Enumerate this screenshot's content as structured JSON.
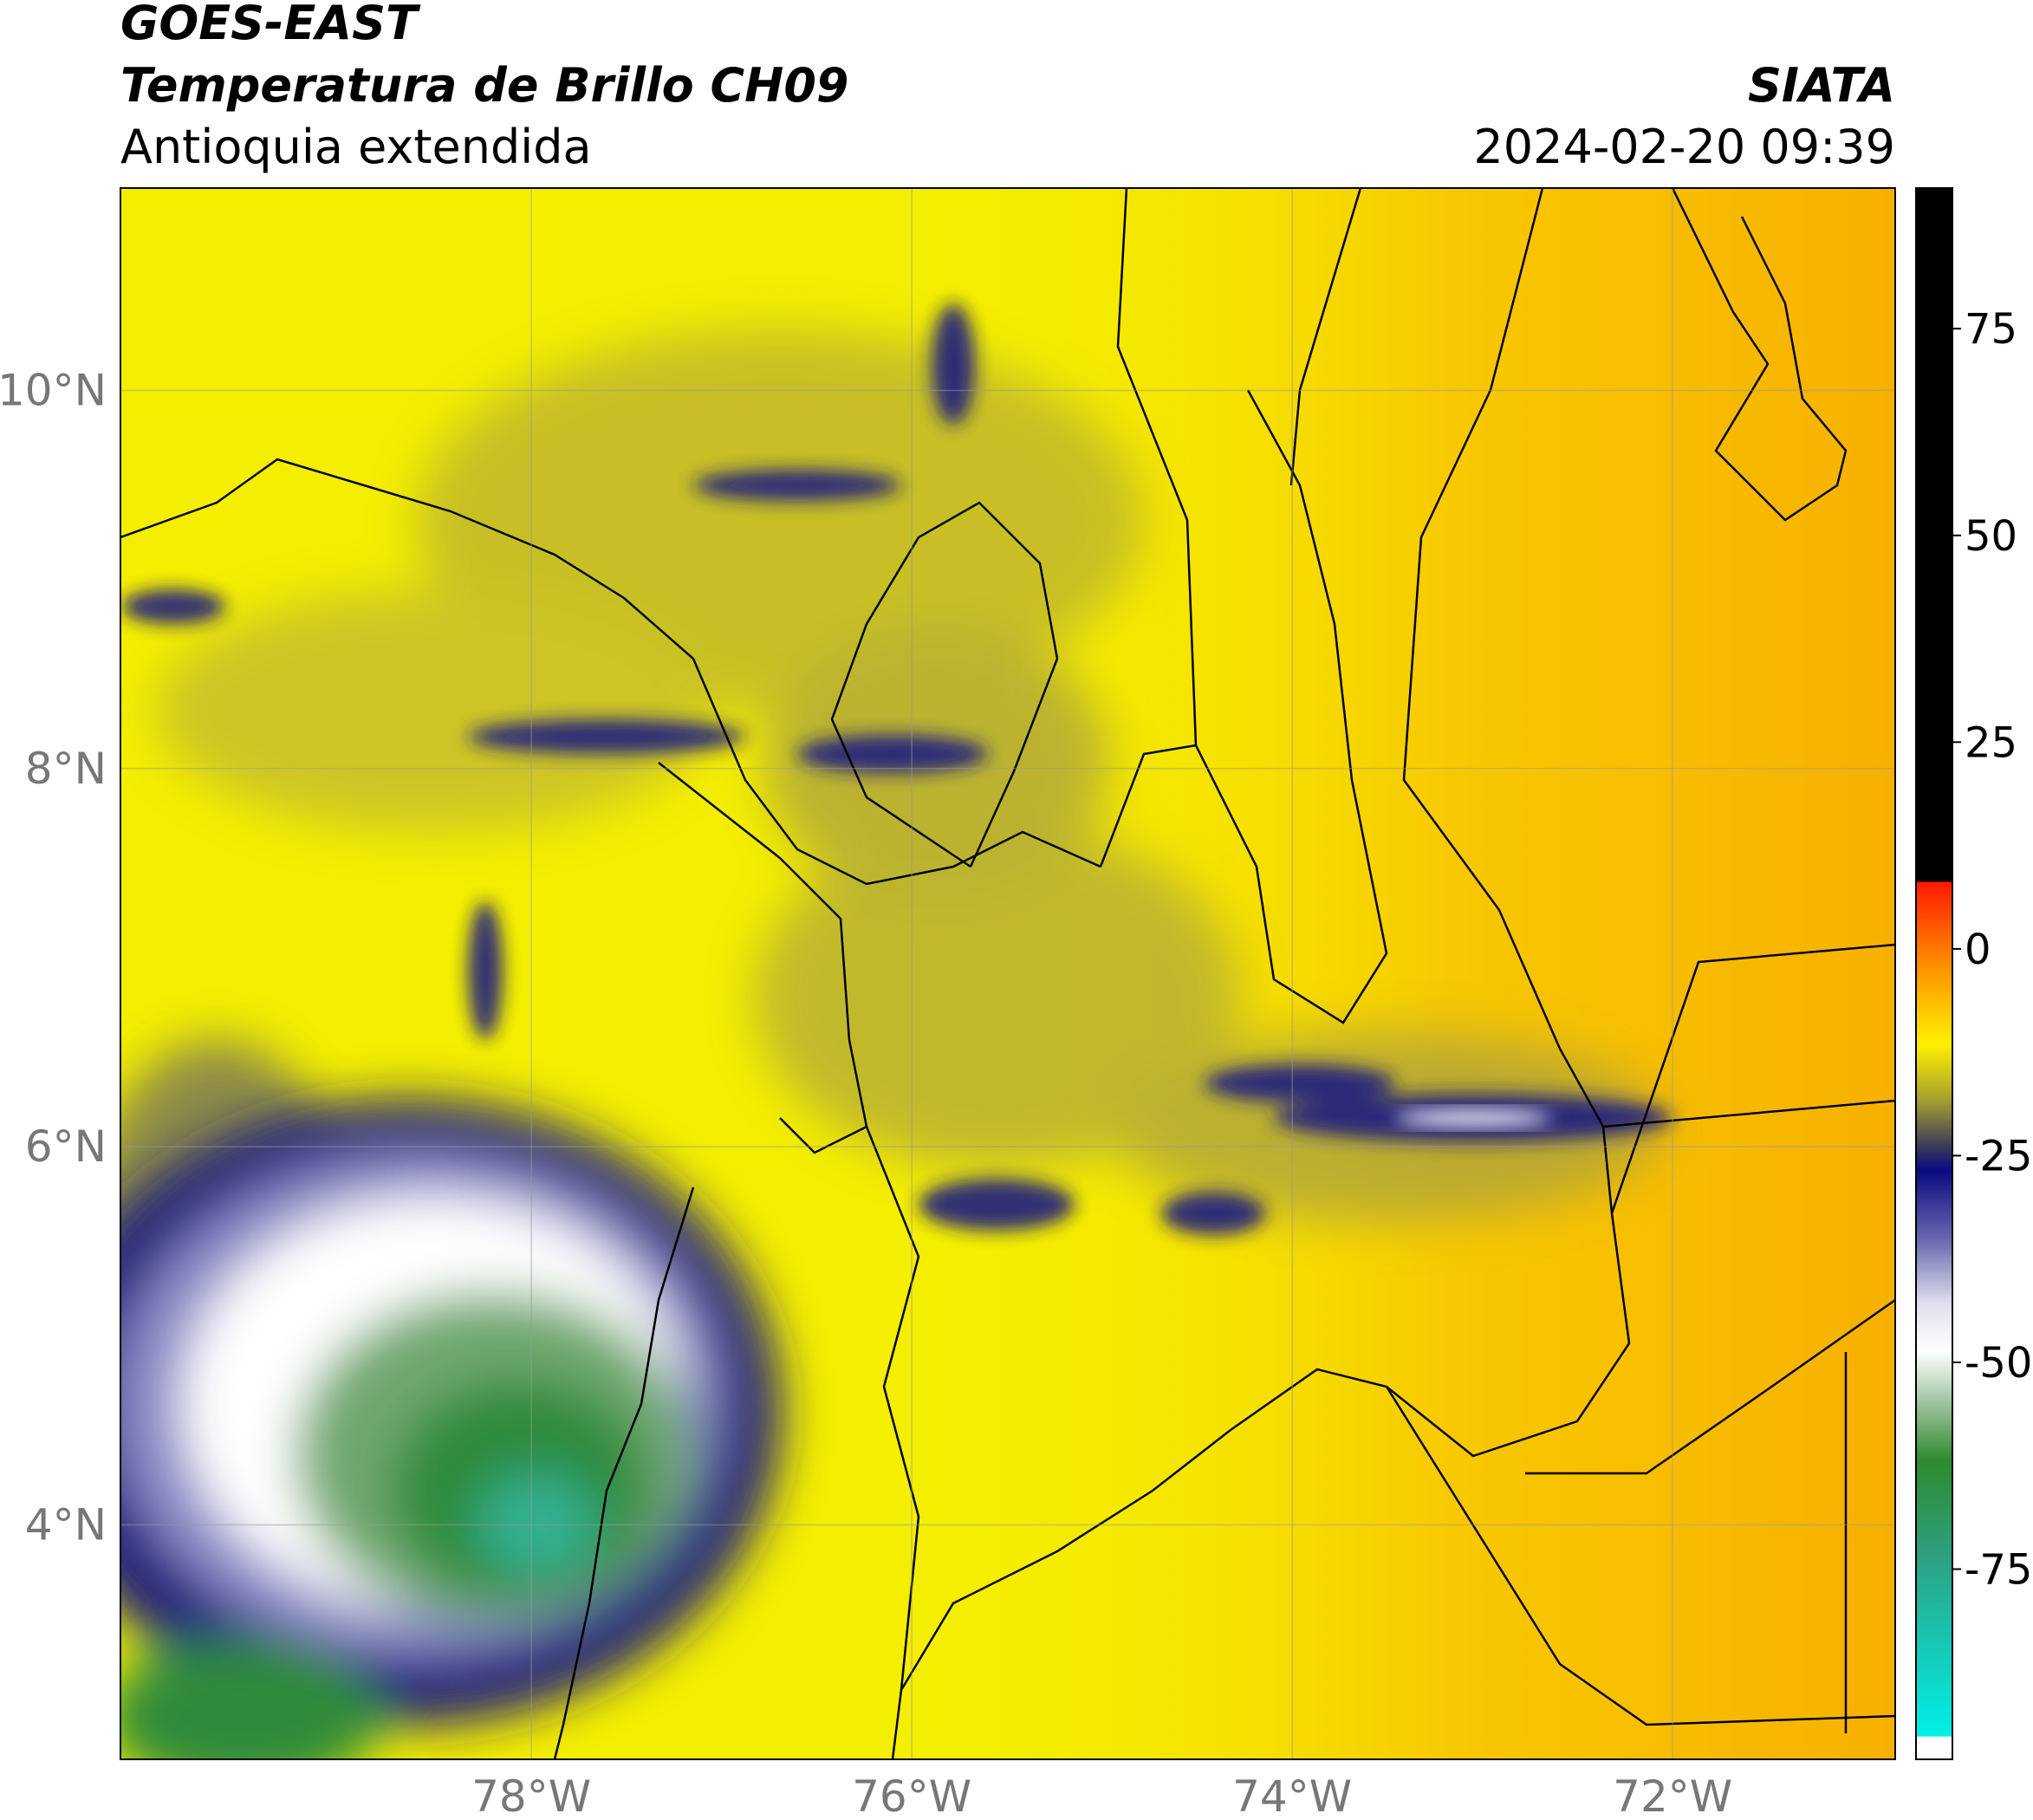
{
  "header": {
    "title": "GOES-EAST",
    "subtitle": "Temperatura de Brillo CH09",
    "region": "Antioquia extendida",
    "source": "SIATA",
    "timestamp": "2024-02-20 09:39"
  },
  "map": {
    "xlim": [
      -80.16,
      -70.83
    ],
    "ylim": [
      2.76,
      11.07
    ],
    "xticks": [
      {
        "value": -78,
        "label": "78°W"
      },
      {
        "value": -76,
        "label": "76°W"
      },
      {
        "value": -74,
        "label": "74°W"
      },
      {
        "value": -72,
        "label": "72°W"
      }
    ],
    "yticks": [
      {
        "value": 4,
        "label": "4°N"
      },
      {
        "value": 6,
        "label": "6°N"
      },
      {
        "value": 8,
        "label": "8°N"
      },
      {
        "value": 10,
        "label": "10°N"
      }
    ],
    "grid": true
  },
  "colorbar": {
    "lim": [
      -98,
      92
    ],
    "ticks": [
      -75,
      -50,
      -25,
      0,
      25,
      50,
      75
    ]
  }
}
